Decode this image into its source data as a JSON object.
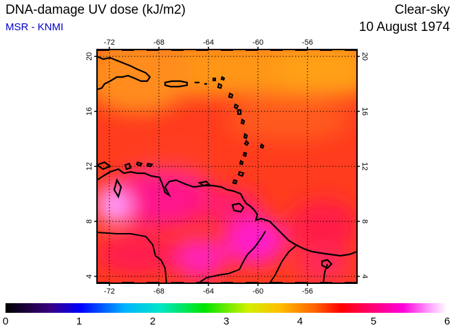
{
  "header": {
    "title": "DNA-damage UV dose (kJ/m2)",
    "subtitle": "MSR - KNMI",
    "condition": "Clear-sky",
    "date": "10 August 1974"
  },
  "colors": {
    "subtitle": "#0000cc",
    "coast": "#000000",
    "frame": "#000000"
  },
  "map": {
    "lon_range": [
      -73,
      -52
    ],
    "lat_range": [
      3.5,
      20.5
    ],
    "lon_ticks": [
      -72,
      -68,
      -64,
      -60,
      -56
    ],
    "lat_ticks": [
      4,
      8,
      12,
      16,
      20
    ],
    "lon_tick_labels": [
      "-72",
      "-68",
      "-64",
      "-60",
      "-56"
    ],
    "lat_tick_labels": [
      "4",
      "8",
      "12",
      "16",
      "20"
    ],
    "gridlines": "dotted"
  },
  "colorbar": {
    "min": 0,
    "max": 6,
    "labels": [
      "0",
      "1",
      "2",
      "3",
      "4",
      "5",
      "6"
    ]
  }
}
